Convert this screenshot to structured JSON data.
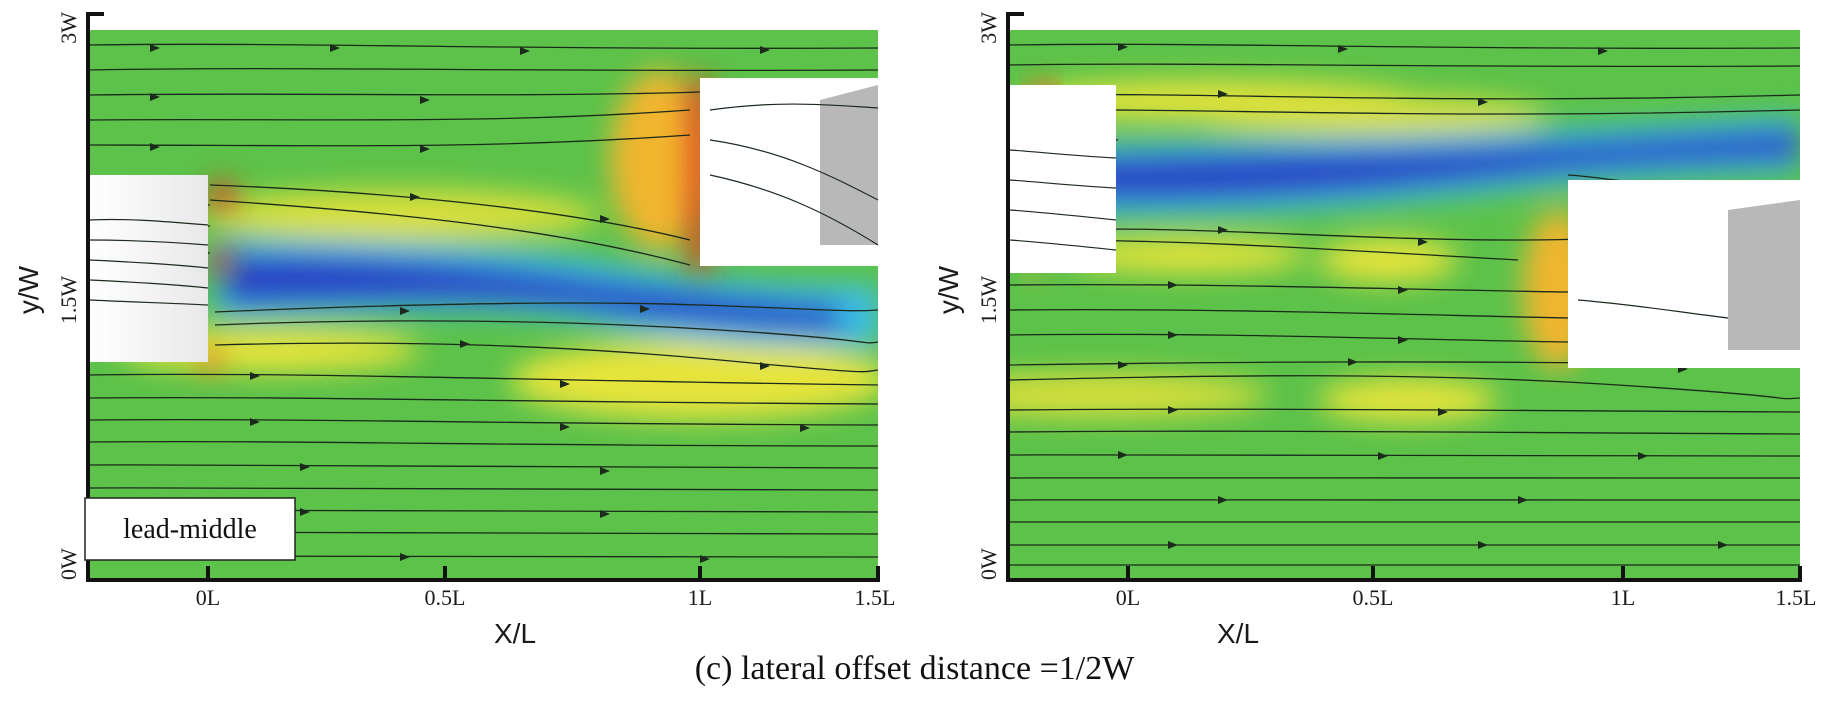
{
  "figure": {
    "caption": "(c) lateral offset distance =1/2W",
    "panels": [
      {
        "id": "left",
        "case_label": "lead-middle",
        "x_axis_title": "X/L",
        "y_axis_title": "y/W",
        "x_ticks": [
          "0L",
          "0.5L",
          "1L",
          "1.5L"
        ],
        "y_ticks": [
          "0W",
          "1.5W",
          "3W"
        ]
      },
      {
        "id": "right",
        "x_axis_title": "X/L",
        "y_axis_title": "y/W",
        "x_ticks": [
          "0L",
          "0.5L",
          "1L",
          "1.5L"
        ],
        "y_ticks": [
          "0W",
          "1.5W",
          "3W"
        ]
      }
    ],
    "colors": {
      "field_background": "#5cc24a",
      "high_speed": "#e8e63a",
      "stagnation": "#e8321e",
      "wake_low": "#2a3fc4",
      "wake_edge": "#35b8e8",
      "streamline": "#1b2a1b"
    }
  }
}
